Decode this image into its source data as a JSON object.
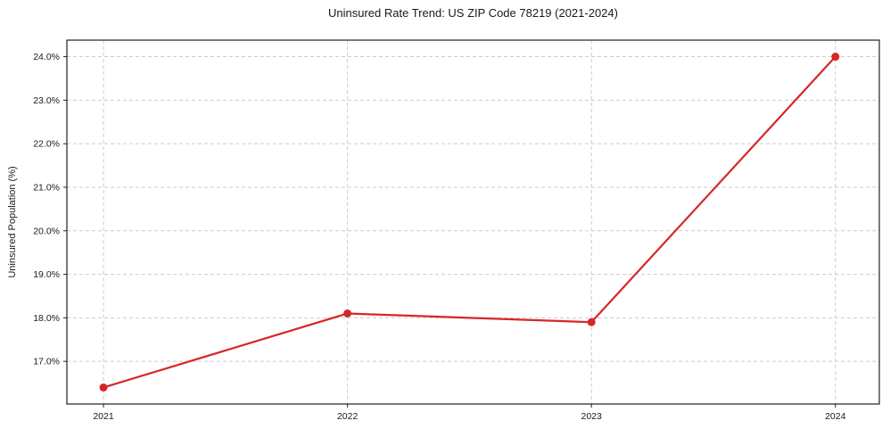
{
  "chart_data": {
    "type": "line",
    "title": "Uninsured Rate Trend: US ZIP Code 78219 (2021-2024)",
    "xlabel": "",
    "ylabel": "Uninsured Population (%)",
    "x": [
      2021,
      2022,
      2023,
      2024
    ],
    "series": [
      {
        "name": "Uninsured rate",
        "values": [
          16.4,
          18.1,
          17.9,
          24.0
        ],
        "color": "#d62728",
        "marker": "circle"
      }
    ],
    "xticks": [
      2021,
      2022,
      2023,
      2024
    ],
    "xtick_labels": [
      "2021",
      "2022",
      "2023",
      "2024"
    ],
    "yticks": [
      17.0,
      18.0,
      19.0,
      20.0,
      21.0,
      22.0,
      23.0,
      24.0
    ],
    "ytick_labels": [
      "17.0%",
      "18.0%",
      "19.0%",
      "20.0%",
      "21.0%",
      "22.0%",
      "23.0%",
      "24.0%"
    ],
    "xlim": [
      2020.85,
      2024.18
    ],
    "ylim": [
      16.02,
      24.38
    ],
    "grid": "dashed",
    "grid_color": "#cccccc",
    "axis_color": "#222222",
    "text_color": "#1a1a1a",
    "background_color": "#ffffff",
    "legend": "none"
  }
}
